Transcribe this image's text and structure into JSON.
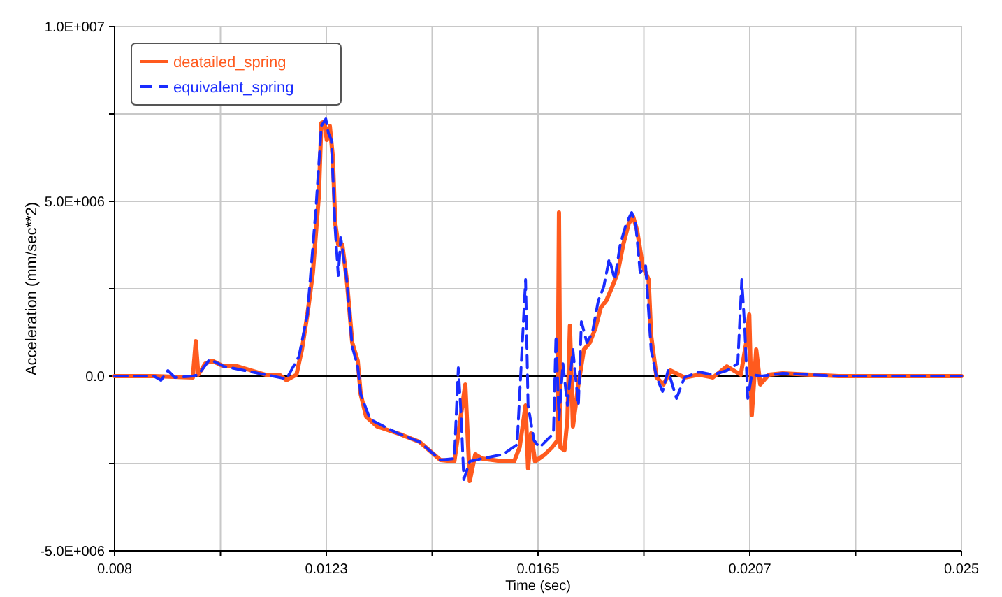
{
  "chart_data": {
    "type": "line",
    "xlabel": "Time (sec)",
    "ylabel": "Acceleration (mm/sec**2)",
    "xlim": [
      0.008,
      0.025
    ],
    "xticks": [
      {
        "value": 0.008,
        "label": "0.008"
      },
      {
        "value": 0.010125,
        "label": null
      },
      {
        "value": 0.01225,
        "label": "0.0123"
      },
      {
        "value": 0.014375,
        "label": null
      },
      {
        "value": 0.0165,
        "label": "0.0165"
      },
      {
        "value": 0.018625,
        "label": null
      },
      {
        "value": 0.02075,
        "label": "0.0207"
      },
      {
        "value": 0.022875,
        "label": null
      },
      {
        "value": 0.025,
        "label": "0.025"
      }
    ],
    "ylim": [
      -5000000,
      10000000
    ],
    "yticks": [
      {
        "value": -5000000,
        "label": "-5.0E+006"
      },
      {
        "value": -2500000,
        "label": null
      },
      {
        "value": 0,
        "label": "0.0"
      },
      {
        "value": 2500000,
        "label": null
      },
      {
        "value": 5000000,
        "label": "5.0E+006"
      },
      {
        "value": 7500000,
        "label": null
      },
      {
        "value": 10000000,
        "label": "1.0E+007"
      }
    ],
    "grid": true,
    "legend": "top left",
    "marker": "none",
    "ref_lines": [
      {
        "axis": "y",
        "value": 0,
        "color": "#000000"
      }
    ],
    "series": [
      {
        "name": "deatailed_spring",
        "color": "#ff5a1e",
        "line_style": "solid",
        "x": [
          0.008,
          0.00879,
          0.00957,
          0.00963,
          0.00968,
          0.00982,
          0.00996,
          0.01019,
          0.01047,
          0.01075,
          0.01103,
          0.01131,
          0.01145,
          0.01165,
          0.01176,
          0.01187,
          0.01198,
          0.0121,
          0.01215,
          0.01221,
          0.01226,
          0.01232,
          0.01238,
          0.01243,
          0.01249,
          0.01257,
          0.01266,
          0.01277,
          0.01288,
          0.01294,
          0.01305,
          0.01327,
          0.01369,
          0.01412,
          0.01454,
          0.01482,
          0.01504,
          0.01513,
          0.01524,
          0.01538,
          0.0158,
          0.01602,
          0.01613,
          0.01625,
          0.0163,
          0.01636,
          0.01644,
          0.01664,
          0.01678,
          0.01689,
          0.01692,
          0.01695,
          0.01703,
          0.01709,
          0.01714,
          0.0172,
          0.01731,
          0.01742,
          0.01754,
          0.01765,
          0.01776,
          0.01787,
          0.01799,
          0.0181,
          0.01821,
          0.01832,
          0.01841,
          0.01849,
          0.0186,
          0.01872,
          0.01877,
          0.01888,
          0.01902,
          0.01916,
          0.01944,
          0.01973,
          0.02001,
          0.02029,
          0.02057,
          0.02068,
          0.02074,
          0.02079,
          0.02088,
          0.02096,
          0.02113,
          0.02141,
          0.02253,
          0.02393,
          0.025
        ],
        "values": [
          0,
          0,
          -40000,
          1000000,
          40000,
          360000,
          440000,
          280000,
          280000,
          160000,
          40000,
          40000,
          -120000,
          40000,
          760000,
          1760000,
          2960000,
          5160000,
          7240000,
          7280000,
          6760000,
          7160000,
          6280000,
          4360000,
          3760000,
          3760000,
          2760000,
          960000,
          440000,
          -520000,
          -1160000,
          -1440000,
          -1640000,
          -1880000,
          -2400000,
          -2440000,
          -240000,
          -3000000,
          -2240000,
          -2360000,
          -2440000,
          -2440000,
          -2040000,
          -840000,
          -2640000,
          -1640000,
          -2440000,
          -2240000,
          -2040000,
          -1840000,
          4680000,
          -2040000,
          -2120000,
          -1240000,
          1440000,
          -1440000,
          -240000,
          760000,
          960000,
          1360000,
          1960000,
          2160000,
          2560000,
          2960000,
          3760000,
          4360000,
          4560000,
          4160000,
          3160000,
          2760000,
          1160000,
          -40000,
          -240000,
          160000,
          -40000,
          40000,
          -40000,
          280000,
          40000,
          960000,
          1760000,
          -1120000,
          760000,
          -240000,
          40000,
          80000,
          0,
          0,
          0
        ]
      },
      {
        "name": "equivalent_spring",
        "color": "#1a2cff",
        "line_style": "dashed",
        "x": [
          0.008,
          0.00879,
          0.00893,
          0.00907,
          0.00921,
          0.00957,
          0.00968,
          0.00991,
          0.01019,
          0.01061,
          0.01103,
          0.01145,
          0.0117,
          0.01187,
          0.01204,
          0.01215,
          0.01224,
          0.01229,
          0.01235,
          0.01243,
          0.01249,
          0.01254,
          0.01266,
          0.01277,
          0.01288,
          0.01294,
          0.01313,
          0.01369,
          0.01412,
          0.01454,
          0.01482,
          0.0149,
          0.01496,
          0.01501,
          0.01513,
          0.01538,
          0.0158,
          0.01608,
          0.01625,
          0.0163,
          0.01642,
          0.01653,
          0.01681,
          0.01686,
          0.01692,
          0.017,
          0.01709,
          0.0172,
          0.01731,
          0.01737,
          0.01748,
          0.01759,
          0.01771,
          0.01782,
          0.01793,
          0.01804,
          0.01815,
          0.01827,
          0.01838,
          0.01846,
          0.01855,
          0.01866,
          0.01877,
          0.01888,
          0.019,
          0.01911,
          0.01928,
          0.01944,
          0.01973,
          0.02001,
          0.02029,
          0.02051,
          0.02059,
          0.02065,
          0.02071,
          0.02079,
          0.02099,
          0.02141,
          0.02253,
          0.02393,
          0.025
        ],
        "values": [
          0,
          0,
          -120000,
          160000,
          -40000,
          0,
          40000,
          480000,
          280000,
          160000,
          40000,
          -80000,
          560000,
          1760000,
          4760000,
          7160000,
          7360000,
          6960000,
          6760000,
          4160000,
          2880000,
          3960000,
          2760000,
          840000,
          280000,
          -520000,
          -1240000,
          -1640000,
          -1880000,
          -2400000,
          -2360000,
          240000,
          -1240000,
          -2960000,
          -2440000,
          -2360000,
          -2240000,
          -1960000,
          2760000,
          -840000,
          -1840000,
          -2040000,
          -1640000,
          1160000,
          -1240000,
          360000,
          -840000,
          760000,
          -840000,
          1560000,
          960000,
          1240000,
          2160000,
          2560000,
          3360000,
          2760000,
          3760000,
          4360000,
          4680000,
          4360000,
          2960000,
          3160000,
          760000,
          -40000,
          -440000,
          160000,
          -640000,
          -40000,
          120000,
          40000,
          160000,
          360000,
          2760000,
          1360000,
          -640000,
          40000,
          0,
          80000,
          0,
          0,
          0
        ]
      }
    ]
  }
}
